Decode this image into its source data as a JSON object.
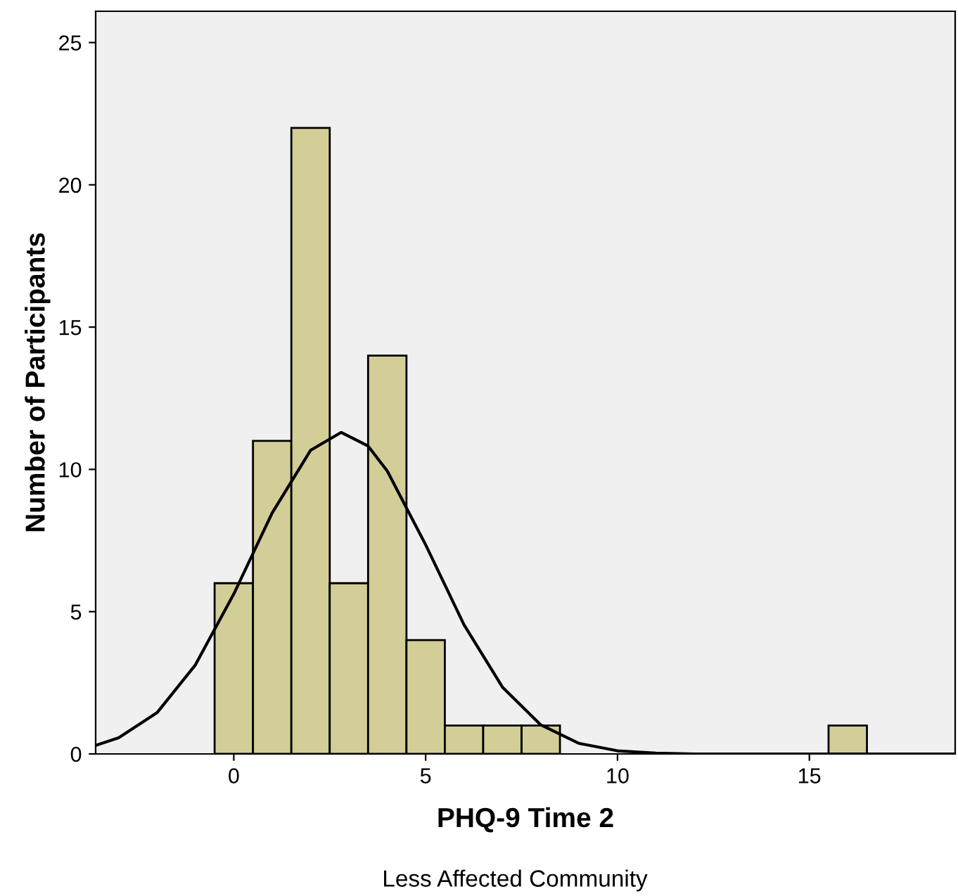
{
  "chart_data": {
    "type": "histogram",
    "xlabel": "PHQ-9 Time 2",
    "ylabel": "Number of Participants",
    "bins": [
      -0.5,
      0.5,
      1.5,
      2.5,
      3.5,
      4.5,
      5.5,
      6.5,
      7.5,
      8.5,
      9.5,
      10.5,
      11.5,
      12.5,
      13.5,
      14.5,
      15.5,
      16.5
    ],
    "values": [
      6,
      11,
      22,
      6,
      14,
      4,
      1,
      1,
      1,
      0,
      0,
      0,
      0,
      0,
      0,
      0,
      1
    ],
    "color": "#d3ce97",
    "series": [
      {
        "type": "line",
        "color": "#000000",
        "x": [
          -3.6,
          -3,
          -2,
          -1,
          0,
          1,
          2,
          2.8,
          3.5,
          4,
          5,
          6,
          7,
          8,
          9,
          10,
          11,
          12,
          15,
          18.8
        ],
        "values": [
          0.3,
          0.57,
          1.45,
          3.13,
          5.62,
          8.47,
          10.67,
          11.3,
          10.82,
          9.94,
          7.35,
          4.54,
          2.35,
          1.02,
          0.37,
          0.11,
          0.03,
          0,
          0,
          0
        ]
      }
    ],
    "xlim": [
      -3.6,
      18.8
    ],
    "ylim": [
      0,
      26.1
    ],
    "xticks": [
      0,
      5,
      10,
      15
    ],
    "yticks": [
      0,
      5,
      10,
      15,
      20,
      25
    ],
    "grid": false,
    "annotations": [
      "Less Affected Community"
    ]
  }
}
